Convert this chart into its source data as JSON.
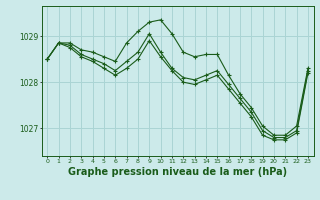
{
  "hours": [
    0,
    1,
    2,
    3,
    4,
    5,
    6,
    7,
    8,
    9,
    10,
    11,
    12,
    13,
    14,
    15,
    16,
    17,
    18,
    19,
    20,
    21,
    22,
    23
  ],
  "series1": [
    1028.5,
    1028.85,
    1028.85,
    1028.7,
    1028.65,
    1028.55,
    1028.45,
    1028.85,
    1029.1,
    1029.3,
    1029.35,
    1029.05,
    1028.65,
    1028.55,
    1028.6,
    1028.6,
    1028.15,
    1027.75,
    1027.45,
    1027.05,
    1026.85,
    1026.85,
    1027.05,
    1028.3
  ],
  "series2": [
    1028.5,
    1028.85,
    1028.8,
    1028.6,
    1028.5,
    1028.4,
    1028.25,
    1028.45,
    1028.65,
    1029.05,
    1028.65,
    1028.3,
    1028.1,
    1028.05,
    1028.15,
    1028.25,
    1027.95,
    1027.65,
    1027.35,
    1026.95,
    1026.8,
    1026.8,
    1026.95,
    1028.25
  ],
  "series3": [
    1028.5,
    1028.85,
    1028.75,
    1028.55,
    1028.45,
    1028.3,
    1028.15,
    1028.3,
    1028.5,
    1028.9,
    1028.55,
    1028.25,
    1028.0,
    1027.95,
    1028.05,
    1028.15,
    1027.85,
    1027.55,
    1027.25,
    1026.85,
    1026.75,
    1026.75,
    1026.9,
    1028.2
  ],
  "line_color": "#1a5c1a",
  "bg_color": "#cceaea",
  "grid_color": "#aad4d4",
  "xlabel": "Graphe pression niveau de la mer (hPa)",
  "xlabel_fontsize": 7.0,
  "yticks": [
    1027,
    1028,
    1029
  ],
  "ylim": [
    1026.4,
    1029.65
  ],
  "xlim": [
    -0.5,
    23.5
  ]
}
